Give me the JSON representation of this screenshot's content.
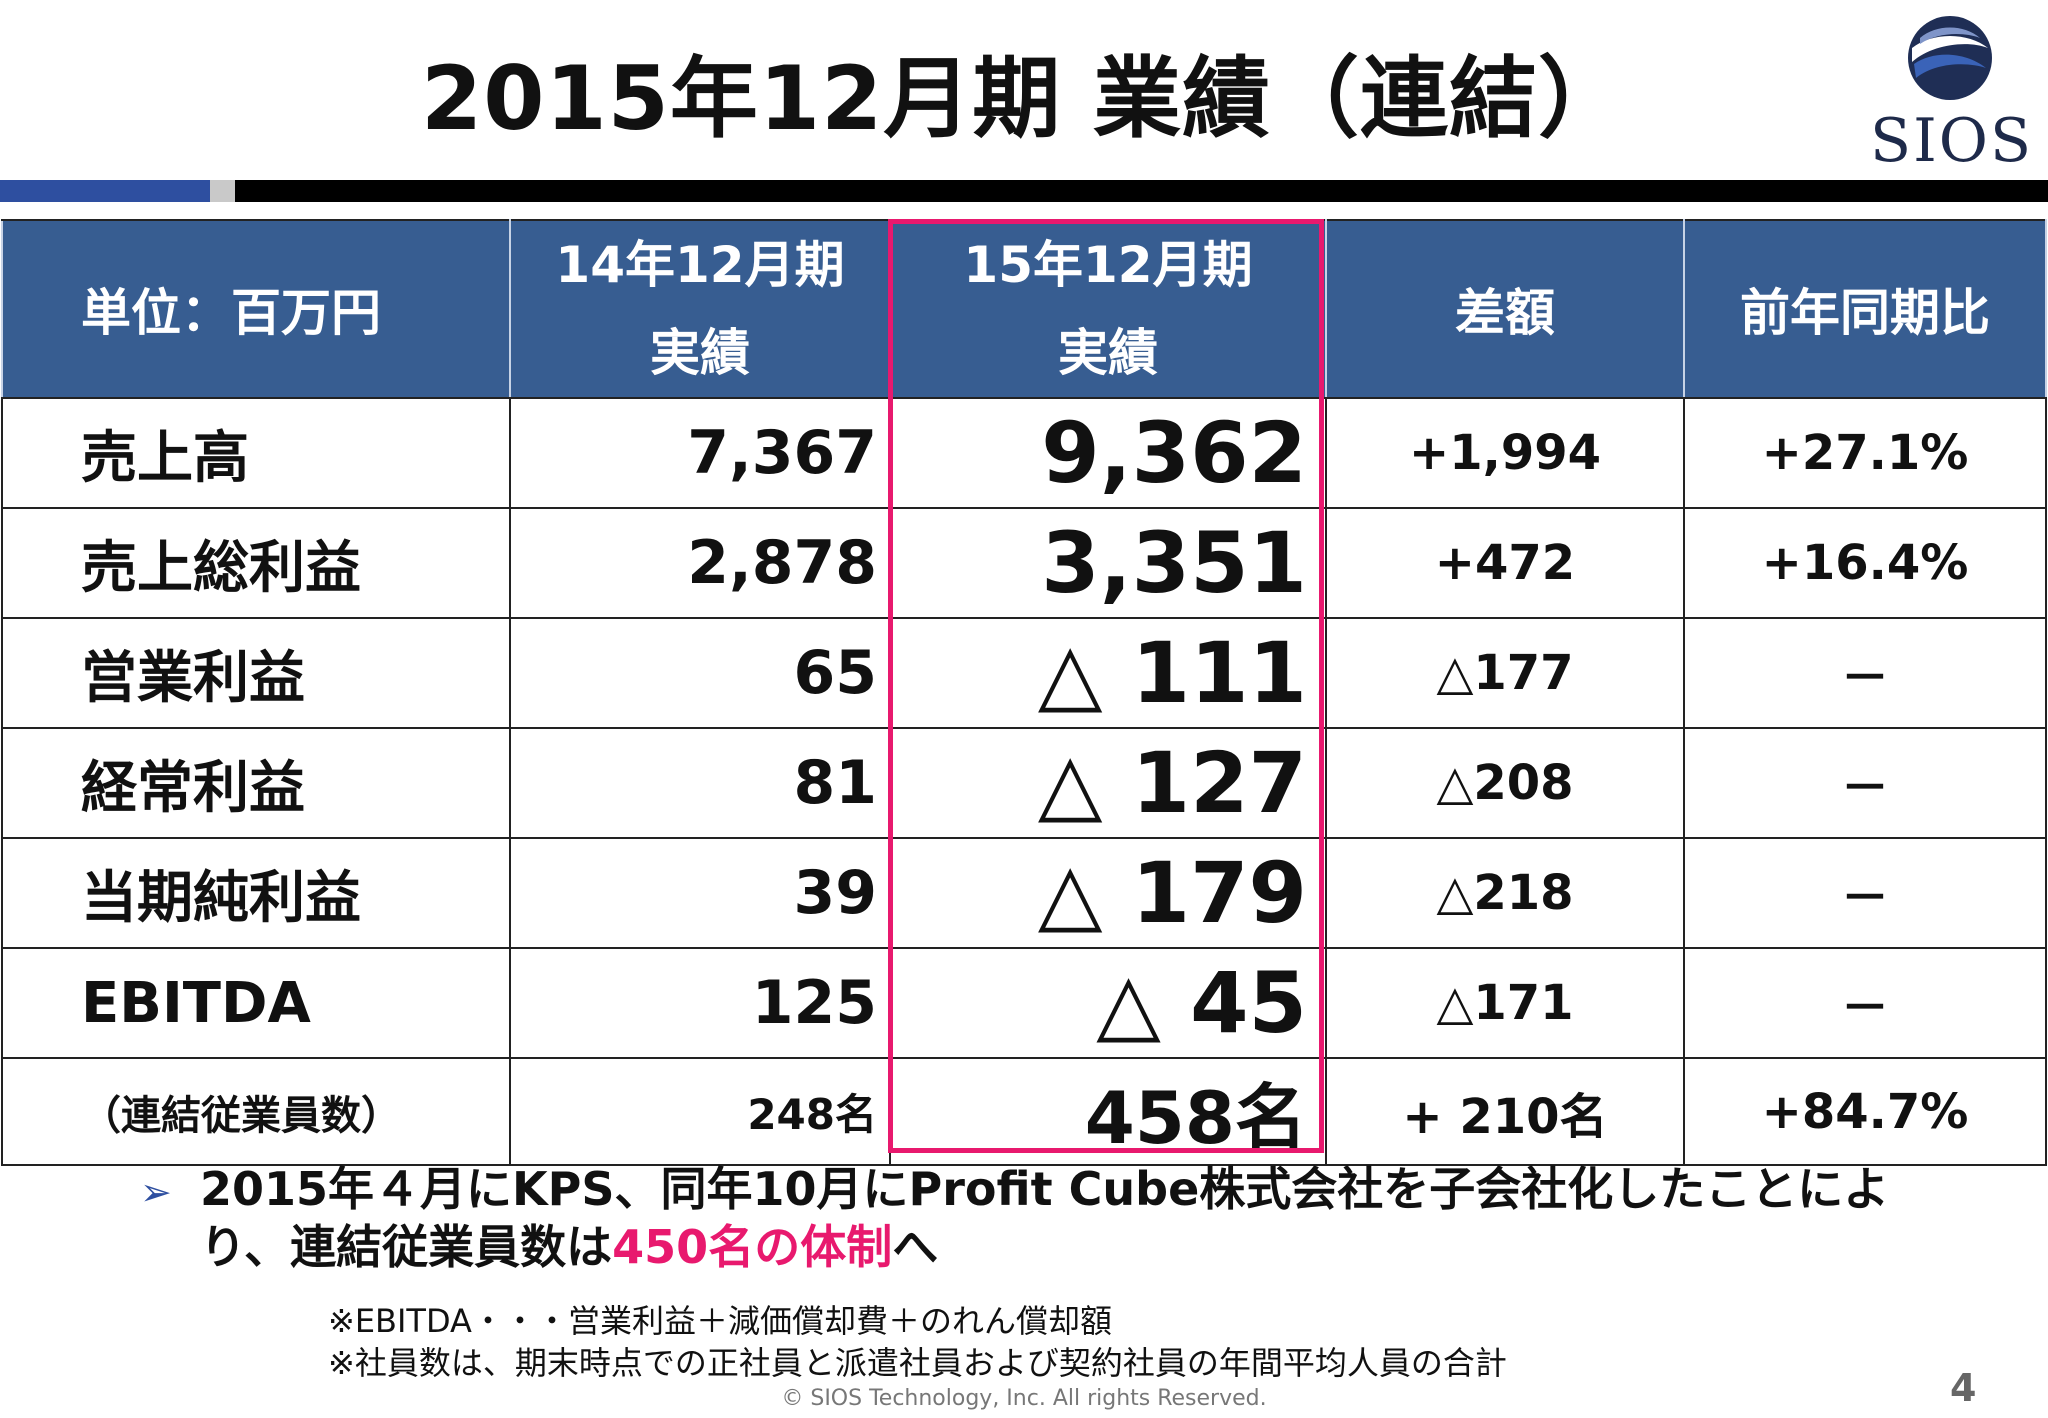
{
  "title": "2015年12月期 業績（連結）",
  "logo": {
    "text": "SIOS",
    "colors": {
      "dark": "#1f2e55",
      "blue": "#3a63b8",
      "light": "#7f95c9"
    }
  },
  "table": {
    "headers": {
      "unit": "単位：百万円",
      "col14_line1": "14年12月期",
      "col14_line2": "実績",
      "col15_line1": "15年12月期",
      "col15_line2": "実績",
      "diff": "差額",
      "yoy": "前年同期比"
    },
    "rows": [
      {
        "label": "売上高",
        "v14": "7,367",
        "v15": "9,362",
        "diff": "+1,994",
        "yoy": "+27.1%"
      },
      {
        "label": "売上総利益",
        "v14": "2,878",
        "v15": "3,351",
        "diff": "+472",
        "yoy": "+16.4%"
      },
      {
        "label": "営業利益",
        "v14": "65",
        "v15": "△ 111",
        "diff": "△177",
        "yoy": "－"
      },
      {
        "label": "経常利益",
        "v14": "81",
        "v15": "△ 127",
        "diff": "△208",
        "yoy": "－"
      },
      {
        "label": "当期純利益",
        "v14": "39",
        "v15": "△ 179",
        "diff": "△218",
        "yoy": "－"
      },
      {
        "label": "EBITDA",
        "v14": "125",
        "v15": "△ 45",
        "diff": "△171",
        "yoy": "－"
      },
      {
        "label": "（連結従業員数）",
        "v14": "248名",
        "v15": "458名",
        "diff": "+ 210名",
        "yoy": "+84.7%"
      }
    ]
  },
  "note": {
    "bullet": "➢",
    "text_before": "2015年４月にKPS、同年10月にProfit Cube株式会社を子会社化したことにより、連結従業員数は",
    "highlight": "450名の体制",
    "text_after": "へ"
  },
  "footnotes": [
    "※EBITDA・・・営業利益＋減価償却費＋のれん償却額",
    "※社員数は、期末時点での正社員と派遣社員および契約社員の年間平均人員の合計"
  ],
  "copyright": "© SIOS Technology, Inc. All rights Reserved.",
  "page_number": "4",
  "colors": {
    "header_bg": "#375d91",
    "highlight_border": "#e8196e",
    "accent_text": "#e8196e",
    "rule_blue": "#2e4fa0"
  }
}
